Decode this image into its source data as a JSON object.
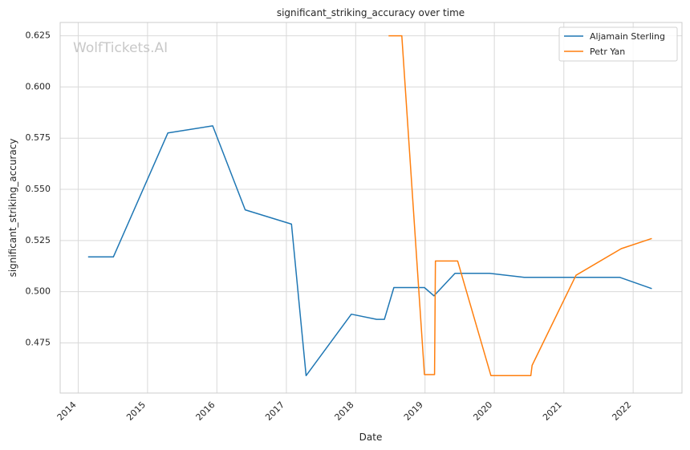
{
  "chart_data": {
    "type": "line",
    "title": "significant_striking_accuracy over time",
    "xlabel": "Date",
    "ylabel": "significant_striking_accuracy",
    "watermark": "WolfTickets.AI",
    "xlim": [
      "2013-09-28",
      "2022-09-15"
    ],
    "ylim": [
      0.4505,
      0.6315
    ],
    "x_ticks": [
      "2014",
      "2015",
      "2016",
      "2017",
      "2018",
      "2019",
      "2020",
      "2021",
      "2022"
    ],
    "y_ticks": [
      "0.475",
      "0.500",
      "0.525",
      "0.550",
      "0.575",
      "0.600",
      "0.625"
    ],
    "grid": true,
    "legend_position": "top-right",
    "series": [
      {
        "name": "Aljamain Sterling",
        "color": "#1f77b4",
        "x": [
          "2014-02-22",
          "2014-07-05",
          "2015-04-18",
          "2015-12-10",
          "2016-05-29",
          "2017-01-28",
          "2017-04-15",
          "2017-12-09",
          "2018-04-21",
          "2018-06-01",
          "2018-07-21",
          "2018-12-29",
          "2019-02-17",
          "2019-06-08",
          "2019-12-07",
          "2020-06-06",
          "2021-03-06",
          "2021-10-23",
          "2022-04-09"
        ],
        "y": [
          0.517,
          0.517,
          0.5775,
          0.581,
          0.54,
          0.533,
          0.459,
          0.489,
          0.4865,
          0.4865,
          0.502,
          0.502,
          0.498,
          0.509,
          0.509,
          0.507,
          0.507,
          0.507,
          0.5015
        ]
      },
      {
        "name": "Petr Yan",
        "color": "#ff7f0e",
        "x": [
          "2018-06-23",
          "2018-09-01",
          "2018-12-29",
          "2019-02-20",
          "2019-02-25",
          "2019-06-22",
          "2019-12-14",
          "2020-07-11",
          "2020-07-18",
          "2021-03-06",
          "2021-10-30",
          "2022-04-09"
        ],
        "y": [
          0.625,
          0.625,
          0.4595,
          0.4595,
          0.515,
          0.515,
          0.459,
          0.459,
          0.464,
          0.508,
          0.521,
          0.526
        ]
      }
    ]
  }
}
